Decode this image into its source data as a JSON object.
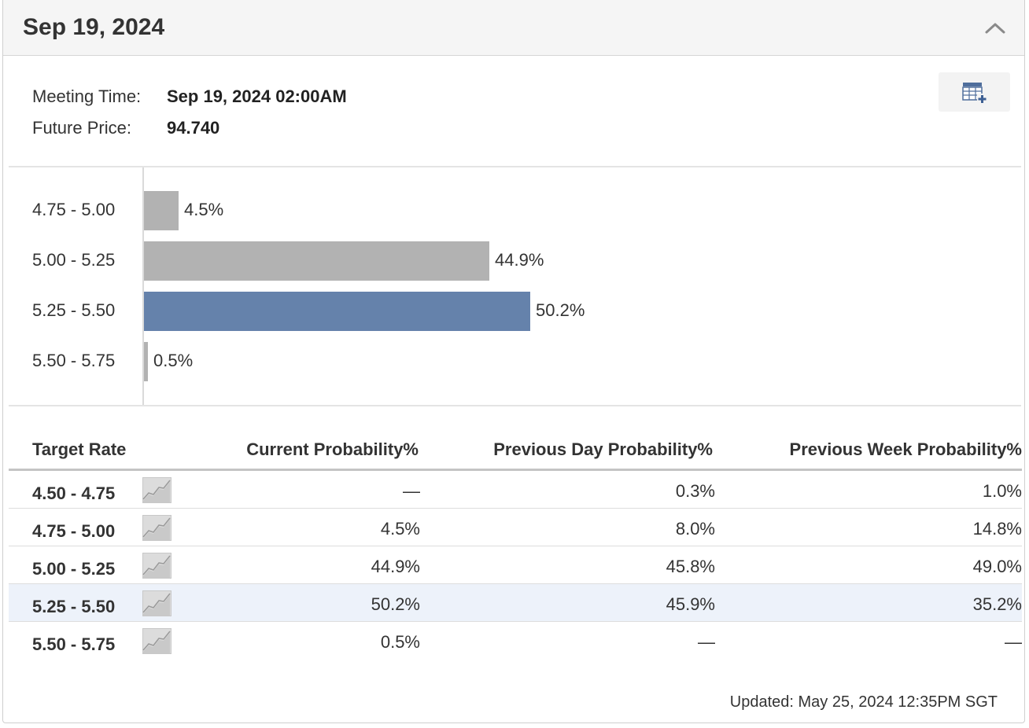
{
  "header": {
    "title": "Sep 19, 2024"
  },
  "meeting": {
    "time_label": "Meeting Time:",
    "time_value": "Sep 19, 2024 02:00AM",
    "price_label": "Future Price:",
    "price_value": "94.740"
  },
  "colors": {
    "bar_gray": "#b2b2b2",
    "bar_highlight": "#6582ab"
  },
  "chart_data": {
    "type": "bar",
    "orientation": "horizontal",
    "categories": [
      "4.75 - 5.00",
      "5.00 - 5.25",
      "5.25 - 5.50",
      "5.50 - 5.75"
    ],
    "values": [
      4.5,
      44.9,
      50.2,
      0.5
    ],
    "value_labels": [
      "4.5%",
      "44.9%",
      "50.2%",
      "0.5%"
    ],
    "highlight_index": 2,
    "xlim": [
      0,
      100
    ],
    "title": "",
    "xlabel": "",
    "ylabel": ""
  },
  "table": {
    "headers": [
      "Target Rate",
      "Current Probability%",
      "Previous Day Probability%",
      "Previous Week Probability%"
    ],
    "rows": [
      {
        "rate": "4.50 - 4.75",
        "current": "—",
        "prev_day": "0.3%",
        "prev_week": "1.0%"
      },
      {
        "rate": "4.75 - 5.00",
        "current": "4.5%",
        "prev_day": "8.0%",
        "prev_week": "14.8%"
      },
      {
        "rate": "5.00 - 5.25",
        "current": "44.9%",
        "prev_day": "45.8%",
        "prev_week": "49.0%"
      },
      {
        "rate": "5.25 - 5.50",
        "current": "50.2%",
        "prev_day": "45.9%",
        "prev_week": "35.2%"
      },
      {
        "rate": "5.50 - 5.75",
        "current": "0.5%",
        "prev_day": "—",
        "prev_week": "—"
      }
    ],
    "highlight_row": 3
  },
  "footer": {
    "updated": "Updated: May 25, 2024 12:35PM SGT"
  },
  "icons": {
    "collapse": "chevron-up-icon",
    "add_table": "table-add-icon",
    "trend": "trend-chart-icon"
  }
}
